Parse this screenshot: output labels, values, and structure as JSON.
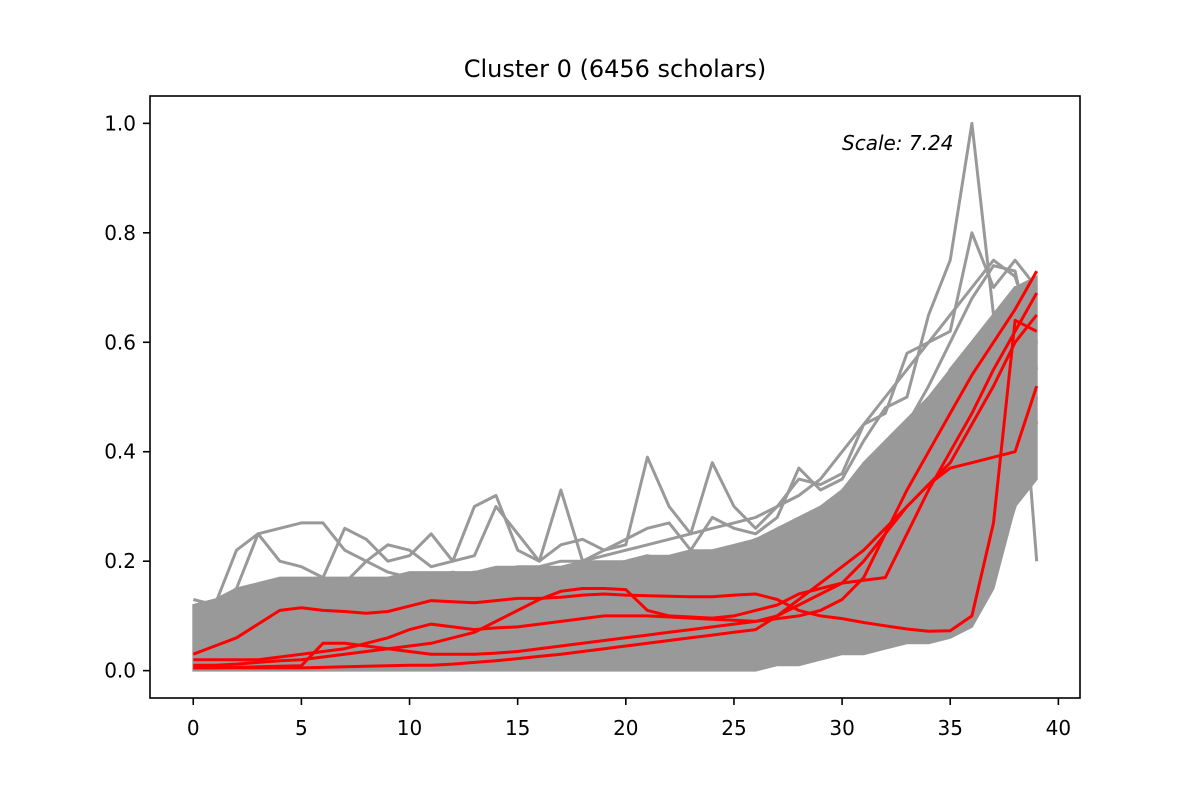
{
  "chart_data": {
    "type": "line",
    "title": "Cluster 0 (6456 scholars)",
    "xlabel": "",
    "ylabel": "",
    "xlim": [
      -2,
      41
    ],
    "ylim": [
      -0.05,
      1.05
    ],
    "x_ticks": [
      0,
      5,
      10,
      15,
      20,
      25,
      30,
      35,
      40
    ],
    "x_tick_labels": [
      "0",
      "5",
      "10",
      "15",
      "20",
      "25",
      "30",
      "35",
      "40"
    ],
    "y_ticks": [
      0.0,
      0.2,
      0.4,
      0.6,
      0.8,
      1.0
    ],
    "y_tick_labels": [
      "0.0",
      "0.2",
      "0.4",
      "0.6",
      "0.8",
      "1.0"
    ],
    "grid": false,
    "annotation": "Scale: 7.24",
    "x": [
      0,
      1,
      2,
      3,
      4,
      5,
      6,
      7,
      8,
      9,
      10,
      11,
      12,
      13,
      14,
      15,
      16,
      17,
      18,
      19,
      20,
      21,
      22,
      23,
      24,
      25,
      26,
      27,
      28,
      29,
      30,
      31,
      32,
      33,
      34,
      35,
      36,
      37,
      38,
      39
    ],
    "background_band": {
      "color": "#999999",
      "lower": [
        0.0,
        0.0,
        0.0,
        0.0,
        0.0,
        0.0,
        0.0,
        0.0,
        0.0,
        0.0,
        0.0,
        0.0,
        0.0,
        0.0,
        0.0,
        0.0,
        0.0,
        0.0,
        0.0,
        0.0,
        0.0,
        0.0,
        0.0,
        0.0,
        0.0,
        0.0,
        0.0,
        0.01,
        0.01,
        0.02,
        0.03,
        0.03,
        0.04,
        0.05,
        0.05,
        0.06,
        0.08,
        0.15,
        0.3,
        0.35
      ],
      "upper": [
        0.12,
        0.13,
        0.15,
        0.16,
        0.17,
        0.17,
        0.17,
        0.17,
        0.17,
        0.17,
        0.18,
        0.18,
        0.18,
        0.18,
        0.19,
        0.19,
        0.19,
        0.19,
        0.2,
        0.2,
        0.2,
        0.21,
        0.21,
        0.22,
        0.22,
        0.23,
        0.24,
        0.26,
        0.28,
        0.3,
        0.33,
        0.38,
        0.42,
        0.46,
        0.5,
        0.55,
        0.6,
        0.65,
        0.7,
        0.72
      ]
    },
    "series": [
      {
        "color": "#999999",
        "values": [
          0.13,
          0.12,
          0.22,
          0.25,
          0.26,
          0.27,
          0.27,
          0.22,
          0.2,
          0.18,
          0.17,
          0.17,
          0.18,
          0.17,
          0.17,
          0.18,
          0.18,
          0.18,
          0.18,
          0.19,
          0.2,
          0.21,
          0.2,
          0.2,
          0.21,
          0.22,
          0.24,
          0.25,
          0.27,
          0.28,
          0.3,
          0.33,
          0.35,
          0.4,
          0.45,
          0.5,
          0.55,
          0.6,
          0.65,
          0.7
        ]
      },
      {
        "color": "#999999",
        "values": [
          0.1,
          0.12,
          0.15,
          0.25,
          0.2,
          0.19,
          0.17,
          0.26,
          0.24,
          0.2,
          0.21,
          0.25,
          0.2,
          0.3,
          0.32,
          0.22,
          0.2,
          0.33,
          0.2,
          0.22,
          0.23,
          0.39,
          0.3,
          0.25,
          0.38,
          0.3,
          0.26,
          0.3,
          0.35,
          0.34,
          0.36,
          0.45,
          0.47,
          0.58,
          0.6,
          0.62,
          0.8,
          0.7,
          0.75,
          0.7
        ]
      },
      {
        "color": "#999999",
        "values": [
          0.09,
          0.1,
          0.12,
          0.14,
          0.15,
          0.16,
          0.17,
          0.16,
          0.2,
          0.23,
          0.22,
          0.19,
          0.2,
          0.21,
          0.3,
          0.25,
          0.2,
          0.23,
          0.24,
          0.22,
          0.24,
          0.26,
          0.27,
          0.22,
          0.28,
          0.26,
          0.25,
          0.28,
          0.37,
          0.33,
          0.35,
          0.42,
          0.48,
          0.5,
          0.65,
          0.75,
          1.0,
          0.65,
          0.7,
          0.2
        ]
      },
      {
        "color": "#999999",
        "values": [
          0.08,
          0.09,
          0.1,
          0.11,
          0.12,
          0.13,
          0.14,
          0.15,
          0.15,
          0.16,
          0.16,
          0.17,
          0.17,
          0.18,
          0.18,
          0.19,
          0.19,
          0.2,
          0.2,
          0.21,
          0.22,
          0.23,
          0.24,
          0.25,
          0.26,
          0.27,
          0.28,
          0.3,
          0.32,
          0.35,
          0.4,
          0.45,
          0.5,
          0.55,
          0.6,
          0.65,
          0.7,
          0.75,
          0.72,
          0.6
        ]
      },
      {
        "color": "#999999",
        "values": [
          0.05,
          0.06,
          0.07,
          0.08,
          0.09,
          0.1,
          0.1,
          0.11,
          0.11,
          0.12,
          0.12,
          0.12,
          0.13,
          0.13,
          0.13,
          0.14,
          0.14,
          0.14,
          0.15,
          0.15,
          0.15,
          0.16,
          0.16,
          0.17,
          0.17,
          0.18,
          0.19,
          0.2,
          0.22,
          0.24,
          0.27,
          0.3,
          0.35,
          0.4,
          0.47,
          0.55,
          0.6,
          0.65,
          0.66,
          0.45
        ]
      },
      {
        "color": "#999999",
        "values": [
          0.02,
          0.03,
          0.03,
          0.04,
          0.04,
          0.05,
          0.05,
          0.05,
          0.06,
          0.06,
          0.06,
          0.07,
          0.07,
          0.07,
          0.08,
          0.08,
          0.08,
          0.09,
          0.09,
          0.09,
          0.1,
          0.1,
          0.1,
          0.11,
          0.11,
          0.11,
          0.12,
          0.12,
          0.13,
          0.14,
          0.15,
          0.16,
          0.18,
          0.2,
          0.23,
          0.27,
          0.32,
          0.38,
          0.5,
          0.6
        ]
      },
      {
        "color": "#999999",
        "values": [
          0.01,
          0.01,
          0.01,
          0.01,
          0.01,
          0.02,
          0.02,
          0.02,
          0.02,
          0.02,
          0.02,
          0.02,
          0.03,
          0.03,
          0.03,
          0.03,
          0.03,
          0.03,
          0.03,
          0.04,
          0.04,
          0.04,
          0.04,
          0.04,
          0.04,
          0.05,
          0.05,
          0.05,
          0.06,
          0.06,
          0.06,
          0.07,
          0.07,
          0.08,
          0.09,
          0.1,
          0.13,
          0.18,
          0.3,
          0.5
        ]
      },
      {
        "color": "#999999",
        "values": [
          0.04,
          0.05,
          0.06,
          0.07,
          0.08,
          0.09,
          0.1,
          0.1,
          0.11,
          0.12,
          0.13,
          0.13,
          0.14,
          0.14,
          0.15,
          0.15,
          0.16,
          0.16,
          0.17,
          0.17,
          0.18,
          0.18,
          0.19,
          0.19,
          0.2,
          0.2,
          0.21,
          0.22,
          0.23,
          0.25,
          0.28,
          0.32,
          0.38,
          0.45,
          0.52,
          0.6,
          0.68,
          0.74,
          0.73,
          0.55
        ]
      },
      {
        "color": "#999999",
        "values": [
          0.06,
          0.07,
          0.08,
          0.09,
          0.1,
          0.1,
          0.11,
          0.11,
          0.12,
          0.12,
          0.12,
          0.13,
          0.13,
          0.13,
          0.14,
          0.14,
          0.14,
          0.15,
          0.15,
          0.16,
          0.16,
          0.17,
          0.17,
          0.18,
          0.18,
          0.19,
          0.2,
          0.21,
          0.22,
          0.24,
          0.26,
          0.29,
          0.33,
          0.37,
          0.42,
          0.48,
          0.54,
          0.6,
          0.67,
          0.68
        ]
      },
      {
        "color": "#999999",
        "values": [
          0.03,
          0.03,
          0.04,
          0.04,
          0.05,
          0.05,
          0.05,
          0.06,
          0.06,
          0.06,
          0.07,
          0.07,
          0.07,
          0.08,
          0.08,
          0.08,
          0.09,
          0.09,
          0.1,
          0.1,
          0.1,
          0.11,
          0.11,
          0.12,
          0.12,
          0.13,
          0.13,
          0.14,
          0.15,
          0.16,
          0.18,
          0.2,
          0.22,
          0.25,
          0.3,
          0.38,
          0.48,
          0.58,
          0.65,
          0.62
        ]
      },
      {
        "color": "#ff0000",
        "values": [
          0.03,
          0.045,
          0.06,
          0.085,
          0.11,
          0.115,
          0.11,
          0.108,
          0.105,
          0.108,
          0.118,
          0.128,
          0.126,
          0.124,
          0.128,
          0.132,
          0.132,
          0.134,
          0.138,
          0.14,
          0.138,
          0.137,
          0.136,
          0.135,
          0.135,
          0.138,
          0.14,
          0.13,
          0.11,
          0.1,
          0.095,
          0.088,
          0.082,
          0.076,
          0.072,
          0.073,
          0.1,
          0.27,
          0.64,
          0.62
        ]
      },
      {
        "color": "#ff0000",
        "values": [
          0.02,
          0.02,
          0.02,
          0.02,
          0.025,
          0.03,
          0.035,
          0.04,
          0.05,
          0.06,
          0.075,
          0.085,
          0.08,
          0.075,
          0.078,
          0.08,
          0.085,
          0.09,
          0.095,
          0.1,
          0.1,
          0.1,
          0.098,
          0.096,
          0.094,
          0.092,
          0.09,
          0.095,
          0.1,
          0.11,
          0.13,
          0.17,
          0.25,
          0.33,
          0.4,
          0.47,
          0.54,
          0.6,
          0.66,
          0.73
        ]
      },
      {
        "color": "#ff0000",
        "values": [
          0.01,
          0.01,
          0.012,
          0.015,
          0.018,
          0.02,
          0.025,
          0.03,
          0.035,
          0.04,
          0.045,
          0.05,
          0.06,
          0.07,
          0.09,
          0.11,
          0.13,
          0.145,
          0.15,
          0.15,
          0.148,
          0.11,
          0.1,
          0.098,
          0.096,
          0.1,
          0.11,
          0.12,
          0.14,
          0.15,
          0.16,
          0.165,
          0.17,
          0.25,
          0.33,
          0.4,
          0.47,
          0.55,
          0.62,
          0.69
        ]
      },
      {
        "color": "#ff0000",
        "values": [
          0.005,
          0.005,
          0.006,
          0.007,
          0.008,
          0.009,
          0.05,
          0.05,
          0.045,
          0.04,
          0.035,
          0.03,
          0.03,
          0.03,
          0.032,
          0.035,
          0.04,
          0.045,
          0.05,
          0.055,
          0.06,
          0.065,
          0.07,
          0.075,
          0.08,
          0.085,
          0.09,
          0.1,
          0.12,
          0.14,
          0.16,
          0.2,
          0.25,
          0.3,
          0.34,
          0.37,
          0.38,
          0.39,
          0.4,
          0.52
        ]
      },
      {
        "color": "#ff0000",
        "values": [
          0.005,
          0.005,
          0.005,
          0.005,
          0.005,
          0.005,
          0.006,
          0.007,
          0.008,
          0.009,
          0.01,
          0.01,
          0.012,
          0.015,
          0.018,
          0.022,
          0.026,
          0.03,
          0.035,
          0.04,
          0.045,
          0.05,
          0.055,
          0.06,
          0.065,
          0.07,
          0.075,
          0.1,
          0.13,
          0.16,
          0.19,
          0.22,
          0.26,
          0.3,
          0.34,
          0.38,
          0.45,
          0.52,
          0.6,
          0.65
        ]
      }
    ]
  }
}
